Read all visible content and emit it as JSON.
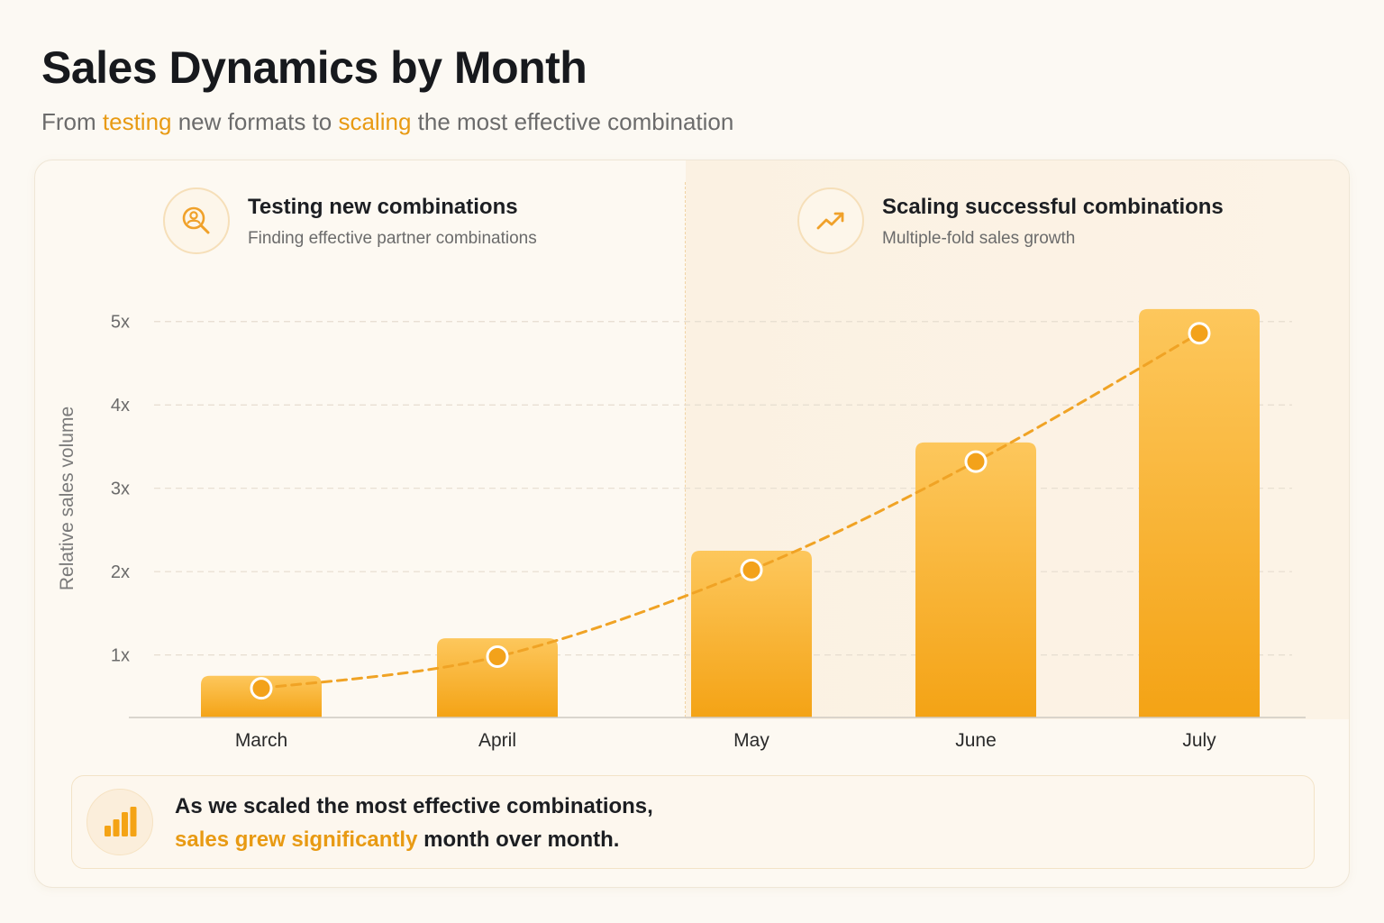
{
  "header": {
    "title": "Sales Dynamics by Month",
    "subtitle_pre": "From ",
    "subtitle_hl1": "testing",
    "subtitle_mid": " new formats to ",
    "subtitle_hl2": "scaling",
    "subtitle_post": " the most effective combination"
  },
  "phases": [
    {
      "title": "Testing new combinations",
      "subtitle": "Finding effective partner combinations",
      "icon": "search-user-icon"
    },
    {
      "title": "Scaling successful combinations",
      "subtitle": "Multiple-fold sales growth",
      "icon": "trending-up-icon"
    }
  ],
  "colors": {
    "accent": "#f3a21a",
    "bar_top": "#fdc75c",
    "bar_bottom": "#f4a315",
    "line": "#f0a325",
    "grid": "#e6ddd0",
    "axis_text": "#6b6b6b"
  },
  "chart_data": {
    "type": "bar",
    "title": "Sales Dynamics by Month",
    "subtitle": "From testing new formats to scaling the most effective combination",
    "categories": [
      "March",
      "April",
      "May",
      "June",
      "July"
    ],
    "values": [
      0.75,
      1.2,
      2.25,
      3.55,
      5.15
    ],
    "trend_values": [
      0.6,
      0.98,
      2.02,
      3.32,
      4.86
    ],
    "ylabel": "Relative sales volume",
    "xlabel": "",
    "ylim": [
      0.25,
      5.3
    ],
    "yticks": [
      1,
      2,
      3,
      4,
      5
    ],
    "ytick_labels": [
      "1x",
      "2x",
      "3x",
      "4x",
      "5x"
    ],
    "grid": true,
    "overlay": "dashed trend line with point markers"
  },
  "callout": {
    "line1": "As we scaled the most effective combinations,",
    "line2_hl": "sales grew significantly",
    "line2_rest": " month over month.",
    "icon": "bar-chart-icon"
  }
}
